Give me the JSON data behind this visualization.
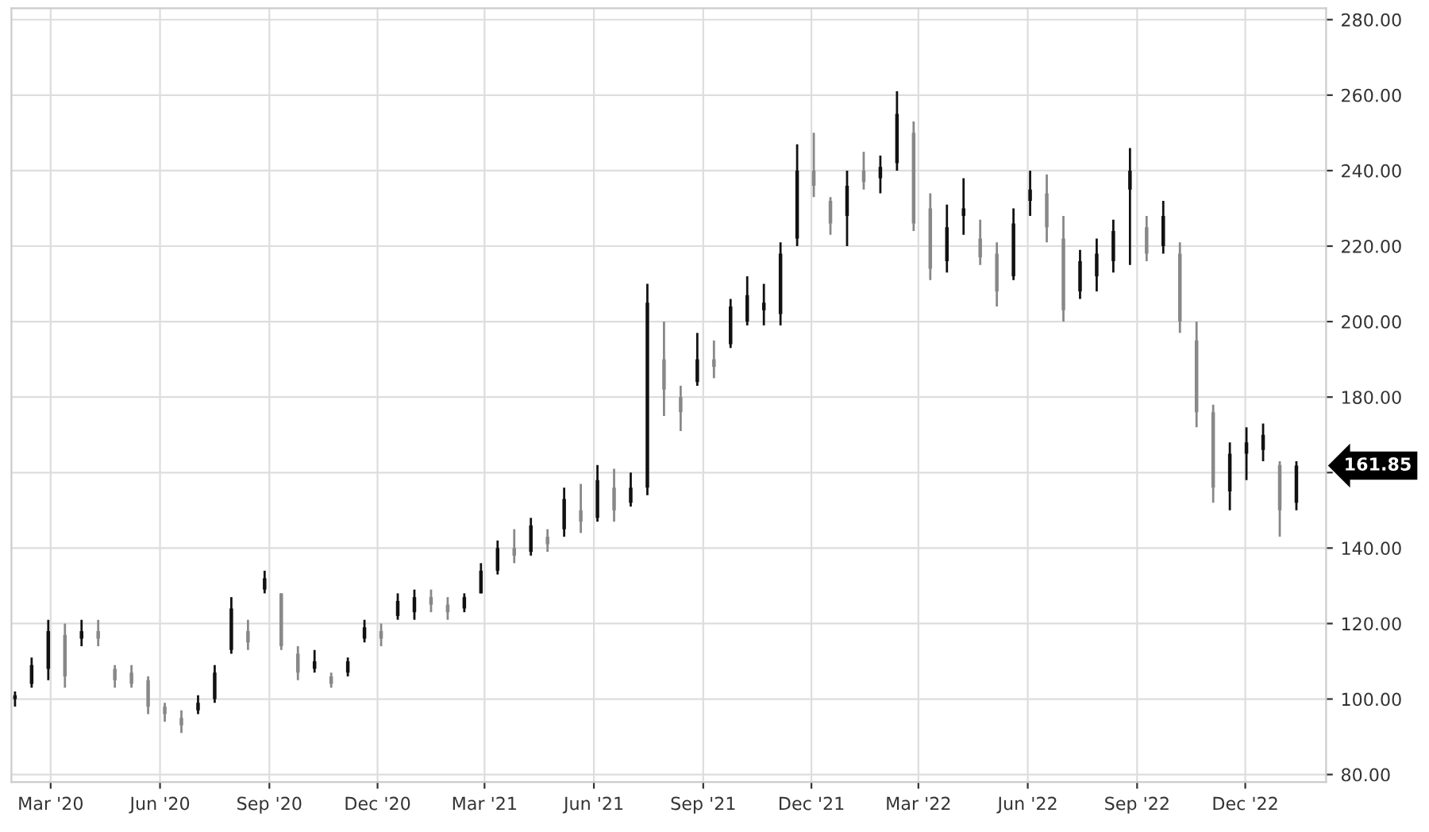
{
  "chart_data": {
    "type": "candlestick",
    "x": [
      "2020-01-31",
      "2020-02-14",
      "2020-02-28",
      "2020-03-13",
      "2020-03-27",
      "2020-04-10",
      "2020-04-24",
      "2020-05-08",
      "2020-05-22",
      "2020-06-05",
      "2020-06-19",
      "2020-07-03",
      "2020-07-17",
      "2020-07-31",
      "2020-08-14",
      "2020-08-28",
      "2020-09-11",
      "2020-09-25",
      "2020-10-09",
      "2020-10-23",
      "2020-11-06",
      "2020-11-20",
      "2020-12-04",
      "2020-12-18",
      "2021-01-01",
      "2021-01-15",
      "2021-01-29",
      "2021-02-12",
      "2021-02-26",
      "2021-03-12",
      "2021-03-26",
      "2021-04-09",
      "2021-04-23",
      "2021-05-07",
      "2021-05-21",
      "2021-06-04",
      "2021-06-18",
      "2021-07-02",
      "2021-07-16",
      "2021-07-30",
      "2021-08-13",
      "2021-08-27",
      "2021-09-10",
      "2021-09-24",
      "2021-10-08",
      "2021-10-22",
      "2021-11-05",
      "2021-11-19",
      "2021-12-03",
      "2021-12-17",
      "2021-12-31",
      "2022-01-14",
      "2022-01-28",
      "2022-02-11",
      "2022-02-25",
      "2022-03-11",
      "2022-03-25",
      "2022-04-08",
      "2022-04-22",
      "2022-05-06",
      "2022-05-20",
      "2022-06-03",
      "2022-06-17",
      "2022-07-01",
      "2022-07-15",
      "2022-07-29",
      "2022-08-12",
      "2022-08-26",
      "2022-09-09",
      "2022-09-23",
      "2022-10-07",
      "2022-10-21",
      "2022-11-04",
      "2022-11-18",
      "2022-12-02",
      "2022-12-16",
      "2022-12-30",
      "2023-01-13"
    ],
    "ohlc": [
      [
        100,
        102,
        98,
        101
      ],
      [
        104,
        111,
        103,
        109
      ],
      [
        108,
        121,
        105,
        118
      ],
      [
        117,
        120,
        103,
        106
      ],
      [
        116,
        121,
        114,
        118
      ],
      [
        118,
        121,
        114,
        116
      ],
      [
        108,
        109,
        103,
        105
      ],
      [
        107,
        109,
        103,
        104
      ],
      [
        105,
        106,
        96,
        98
      ],
      [
        98,
        99,
        94,
        96
      ],
      [
        95,
        97,
        91,
        93
      ],
      [
        97,
        101,
        96,
        99
      ],
      [
        100,
        109,
        99,
        107
      ],
      [
        113,
        127,
        112,
        124
      ],
      [
        118,
        121,
        113,
        115
      ],
      [
        129,
        134,
        128,
        132
      ],
      [
        128,
        128,
        113,
        114
      ],
      [
        112,
        114,
        105,
        107
      ],
      [
        108,
        113,
        107,
        110
      ],
      [
        106,
        107,
        103,
        104
      ],
      [
        107,
        111,
        106,
        110
      ],
      [
        116,
        121,
        115,
        119
      ],
      [
        118,
        120,
        114,
        116
      ],
      [
        122,
        128,
        121,
        126
      ],
      [
        123,
        129,
        121,
        127
      ],
      [
        127,
        129,
        123,
        125
      ],
      [
        125,
        127,
        121,
        123
      ],
      [
        124,
        128,
        123,
        127
      ],
      [
        128,
        136,
        128,
        134
      ],
      [
        134,
        142,
        133,
        140
      ],
      [
        140,
        145,
        136,
        138
      ],
      [
        139,
        148,
        138,
        146
      ],
      [
        143,
        145,
        139,
        141
      ],
      [
        145,
        156,
        143,
        153
      ],
      [
        150,
        157,
        144,
        147
      ],
      [
        148,
        162,
        147,
        158
      ],
      [
        156,
        161,
        147,
        150
      ],
      [
        152,
        160,
        151,
        156
      ],
      [
        156,
        210,
        154,
        205
      ],
      [
        190,
        200,
        175,
        182
      ],
      [
        180,
        183,
        171,
        176
      ],
      [
        184,
        197,
        183,
        190
      ],
      [
        190,
        195,
        185,
        188
      ],
      [
        194,
        206,
        193,
        204
      ],
      [
        200,
        212,
        199,
        207
      ],
      [
        203,
        210,
        199,
        205
      ],
      [
        202,
        221,
        199,
        218
      ],
      [
        222,
        247,
        220,
        240
      ],
      [
        240,
        250,
        233,
        236
      ],
      [
        232,
        233,
        223,
        226
      ],
      [
        228,
        240,
        220,
        236
      ],
      [
        240,
        245,
        235,
        237
      ],
      [
        238,
        244,
        234,
        241
      ],
      [
        242,
        261,
        240,
        255
      ],
      [
        250,
        253,
        224,
        226
      ],
      [
        230,
        234,
        211,
        214
      ],
      [
        216,
        231,
        213,
        225
      ],
      [
        228,
        238,
        223,
        230
      ],
      [
        222,
        227,
        215,
        217
      ],
      [
        218,
        221,
        204,
        208
      ],
      [
        212,
        230,
        211,
        226
      ],
      [
        232,
        240,
        228,
        235
      ],
      [
        234,
        239,
        221,
        225
      ],
      [
        222,
        228,
        200,
        203
      ],
      [
        208,
        219,
        206,
        216
      ],
      [
        212,
        222,
        208,
        218
      ],
      [
        216,
        227,
        213,
        224
      ],
      [
        235,
        246,
        215,
        240
      ],
      [
        225,
        228,
        216,
        218
      ],
      [
        220,
        232,
        218,
        228
      ],
      [
        218,
        221,
        197,
        200
      ],
      [
        195,
        200,
        172,
        176
      ],
      [
        176,
        178,
        152,
        156
      ],
      [
        155,
        168,
        150,
        165
      ],
      [
        165,
        172,
        158,
        168
      ],
      [
        166,
        173,
        163,
        170
      ],
      [
        162,
        163,
        143,
        150
      ],
      [
        152,
        163,
        150,
        161.85
      ]
    ],
    "colors": [
      "#111111",
      "#111111",
      "#111111",
      "#888888",
      "#111111",
      "#888888",
      "#888888",
      "#888888",
      "#888888",
      "#888888",
      "#888888",
      "#111111",
      "#111111",
      "#111111",
      "#888888",
      "#111111",
      "#888888",
      "#888888",
      "#111111",
      "#888888",
      "#111111",
      "#111111",
      "#888888",
      "#111111",
      "#111111",
      "#888888",
      "#888888",
      "#111111",
      "#111111",
      "#111111",
      "#888888",
      "#111111",
      "#888888",
      "#111111",
      "#888888",
      "#111111",
      "#888888",
      "#111111",
      "#111111",
      "#888888",
      "#888888",
      "#111111",
      "#888888",
      "#111111",
      "#111111",
      "#111111",
      "#111111",
      "#111111",
      "#888888",
      "#888888",
      "#111111",
      "#888888",
      "#111111",
      "#111111",
      "#888888",
      "#888888",
      "#111111",
      "#111111",
      "#888888",
      "#888888",
      "#111111",
      "#111111",
      "#888888",
      "#888888",
      "#111111",
      "#111111",
      "#111111",
      "#111111",
      "#888888",
      "#111111",
      "#888888",
      "#888888",
      "#888888",
      "#111111",
      "#111111",
      "#111111",
      "#888888",
      "#111111"
    ],
    "xlim": [
      "2020-01-28",
      "2023-02-07"
    ],
    "xticks": [
      {
        "value": "2020-03-01",
        "label": "Mar '20"
      },
      {
        "value": "2020-06-01",
        "label": "Jun '20"
      },
      {
        "value": "2020-09-01",
        "label": "Sep '20"
      },
      {
        "value": "2020-12-01",
        "label": "Dec '20"
      },
      {
        "value": "2021-03-01",
        "label": "Mar '21"
      },
      {
        "value": "2021-06-01",
        "label": "Jun '21"
      },
      {
        "value": "2021-09-01",
        "label": "Sep '21"
      },
      {
        "value": "2021-12-01",
        "label": "Dec '21"
      },
      {
        "value": "2022-03-01",
        "label": "Mar '22"
      },
      {
        "value": "2022-06-01",
        "label": "Jun '22"
      },
      {
        "value": "2022-09-01",
        "label": "Sep '22"
      },
      {
        "value": "2022-12-01",
        "label": "Dec '22"
      }
    ],
    "ylim": [
      78,
      283
    ],
    "yticks": [
      {
        "value": 80,
        "label": "80.00"
      },
      {
        "value": 100,
        "label": "100.00"
      },
      {
        "value": 120,
        "label": "120.00"
      },
      {
        "value": 140,
        "label": "140.00"
      },
      {
        "value": 160,
        "label": null
      },
      {
        "value": 180,
        "label": "180.00"
      },
      {
        "value": 200,
        "label": "200.00"
      },
      {
        "value": 220,
        "label": "220.00"
      },
      {
        "value": 240,
        "label": "240.00"
      },
      {
        "value": 260,
        "label": "260.00"
      },
      {
        "value": 280,
        "label": "280.00"
      }
    ],
    "grid": true,
    "annotations": [
      "161.85"
    ]
  }
}
